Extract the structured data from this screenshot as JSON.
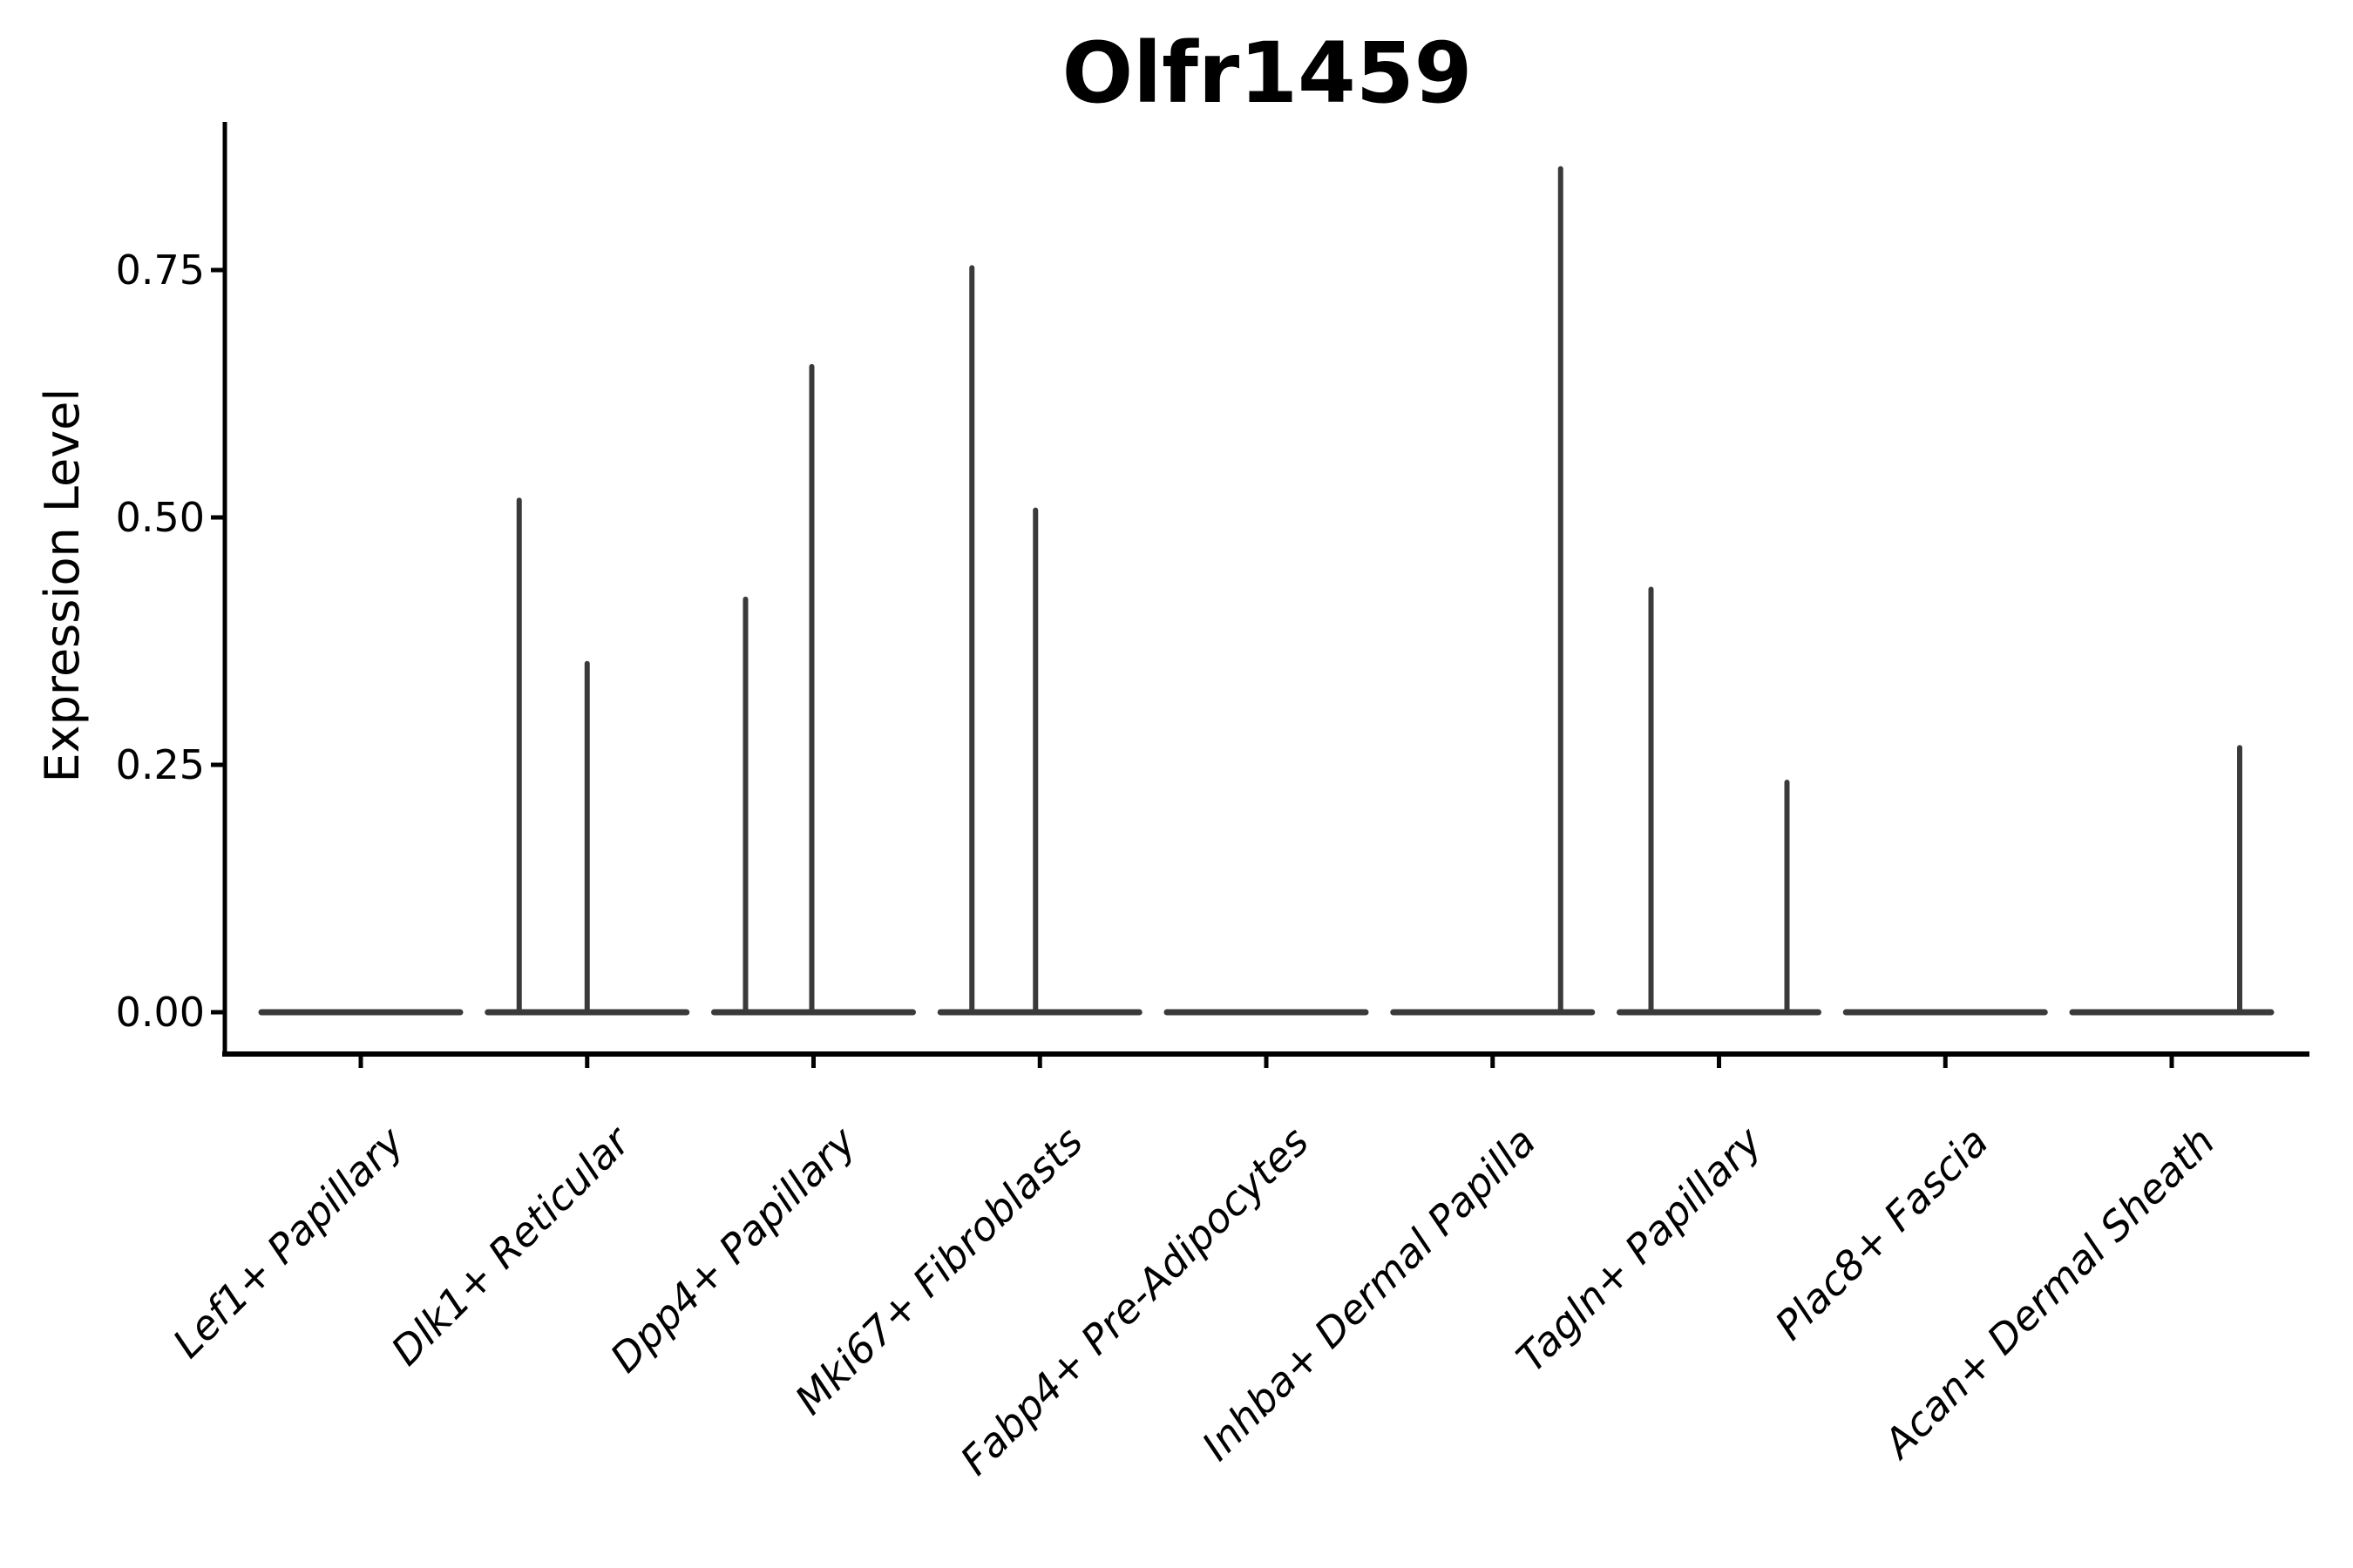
{
  "chart_data": {
    "type": "violin",
    "title": "Olfr1459",
    "ylabel": "Expression Level",
    "xlabel": "",
    "ylim": [
      0,
      0.9
    ],
    "yticks": [
      0,
      0.25,
      0.5,
      0.75
    ],
    "ytick_labels": [
      "0.00",
      "0.25",
      "0.50",
      "0.75"
    ],
    "grid": false,
    "legend": false,
    "categories": [
      "Lef1+ Papillary",
      "Dlk1+ Reticular",
      "Dpp4+ Papillary",
      "Mki67+ Fibroblasts",
      "Fabp4+ Pre-Adipocytes",
      "Inhba+ Dermal Papilla",
      "Tagln+ Papillary",
      "Plac8+ Fascia",
      "Acan+ Dermal Sheath"
    ],
    "violins": [
      {
        "category": "Lef1+ Papillary",
        "zero_line": true,
        "spikes": []
      },
      {
        "category": "Dlk1+ Reticular",
        "zero_line": true,
        "spikes": [
          {
            "dx": -78,
            "value": 0.52
          },
          {
            "dx": 0,
            "value": 0.355
          }
        ]
      },
      {
        "category": "Dpp4+ Papillary",
        "zero_line": true,
        "spikes": [
          {
            "dx": -78,
            "value": 0.42
          },
          {
            "dx": -2,
            "value": 0.655
          }
        ]
      },
      {
        "category": "Mki67+ Fibroblasts",
        "zero_line": true,
        "spikes": [
          {
            "dx": -78,
            "value": 0.755
          },
          {
            "dx": -5,
            "value": 0.51
          }
        ]
      },
      {
        "category": "Fabp4+ Pre-Adipocytes",
        "zero_line": true,
        "spikes": []
      },
      {
        "category": "Inhba+ Dermal Papilla",
        "zero_line": true,
        "spikes": [
          {
            "dx": 78,
            "value": 0.855
          }
        ]
      },
      {
        "category": "Tagln+ Papillary",
        "zero_line": true,
        "spikes": [
          {
            "dx": -78,
            "value": 0.43
          },
          {
            "dx": 78,
            "value": 0.235
          }
        ]
      },
      {
        "category": "Plac8+ Fascia",
        "zero_line": true,
        "spikes": []
      },
      {
        "category": "Acan+ Dermal Sheath",
        "zero_line": true,
        "spikes": [
          {
            "dx": 78,
            "value": 0.27
          }
        ]
      }
    ],
    "colors": {
      "violin_line": "#3a3a3a",
      "spine": "#000000",
      "text": "#000000",
      "background": "#ffffff"
    }
  }
}
